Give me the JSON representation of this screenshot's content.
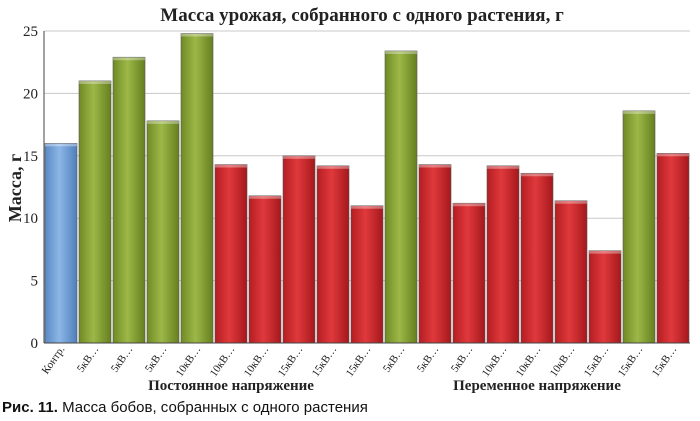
{
  "chart_data": {
    "type": "bar",
    "title": "Масса урожая, собранного с одного растения, г",
    "ylabel": "Масса, г",
    "ylim": [
      0,
      25
    ],
    "yticks": [
      0,
      5,
      10,
      15,
      20,
      25
    ],
    "grid": true,
    "categories": [
      "Контр.",
      "5кВ…",
      "5кВ…",
      "5кВ…",
      "10кВ…",
      "10кВ…",
      "10кВ…",
      "15кВ…",
      "15кВ…",
      "15кВ…",
      "5кВ…",
      "5кВ…",
      "5кВ…",
      "10кВ…",
      "10кВ…",
      "10кВ…",
      "15кВ…",
      "15кВ…",
      "15кВ…"
    ],
    "values": [
      16.0,
      21.0,
      22.9,
      17.8,
      24.8,
      14.3,
      11.8,
      15.0,
      14.2,
      11.0,
      23.4,
      14.3,
      11.2,
      14.2,
      13.6,
      11.4,
      7.4,
      18.6,
      15.2
    ],
    "bar_colors": [
      "blue",
      "green",
      "green",
      "green",
      "green",
      "red",
      "red",
      "red",
      "red",
      "red",
      "green",
      "red",
      "red",
      "red",
      "red",
      "red",
      "red",
      "green",
      "red"
    ],
    "groups": [
      {
        "label": "Постоянное напряжение",
        "from": 1,
        "to": 9
      },
      {
        "label": "Переменное напряжение",
        "from": 10,
        "to": 18
      }
    ]
  },
  "colors": {
    "blue": "#6a9bd4",
    "green": "#8aa33a",
    "red": "#cc2a2e",
    "grid": "#c8c8c8",
    "axis": "#444444"
  },
  "caption": {
    "label": "Рис. 11.",
    "text": "Масса бобов, собранных с одного растения"
  }
}
